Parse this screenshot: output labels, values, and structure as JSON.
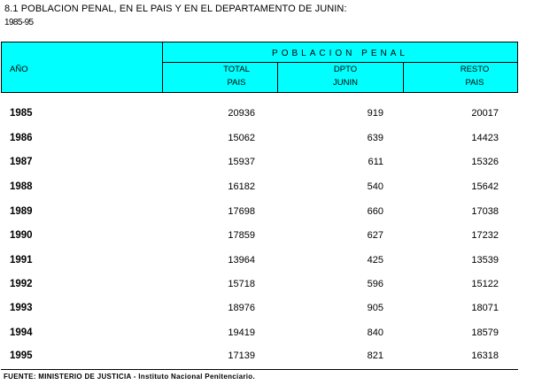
{
  "title": "8.1  POBLACION PENAL, EN EL PAIS Y EN EL DEPARTAMENTO DE JUNIN:",
  "subtitle": "1985-95",
  "header": {
    "ano": "AÑO",
    "group": "POBLACION PENAL",
    "col1": {
      "line1": "TOTAL",
      "line2": "PAIS"
    },
    "col2": {
      "line1": "DPTO",
      "line2": "JUNIN"
    },
    "col3": {
      "line1": "RESTO",
      "line2": "PAIS"
    },
    "fill_color": "#00ffff"
  },
  "rows": [
    {
      "year": "1985",
      "total": "20936",
      "junin": "919",
      "resto": "20017"
    },
    {
      "year": "1986",
      "total": "15062",
      "junin": "639",
      "resto": "14423"
    },
    {
      "year": "1987",
      "total": "15937",
      "junin": "611",
      "resto": "15326"
    },
    {
      "year": "1988",
      "total": "16182",
      "junin": "540",
      "resto": "15642"
    },
    {
      "year": "1989",
      "total": "17698",
      "junin": "660",
      "resto": "17038"
    },
    {
      "year": "1990",
      "total": "17859",
      "junin": "627",
      "resto": "17232"
    },
    {
      "year": "1991",
      "total": "13964",
      "junin": "425",
      "resto": "13539"
    },
    {
      "year": "1992",
      "total": "15718",
      "junin": "596",
      "resto": "15122"
    },
    {
      "year": "1993",
      "total": "18976",
      "junin": "905",
      "resto": "18071"
    },
    {
      "year": "1994",
      "total": "19419",
      "junin": "840",
      "resto": "18579"
    },
    {
      "year": "1995",
      "total": "17139",
      "junin": "821",
      "resto": "16318"
    }
  ],
  "footer": "FUENTE: MINISTERIO DE JUSTICIA - Instituto Nacional Penitenciario."
}
